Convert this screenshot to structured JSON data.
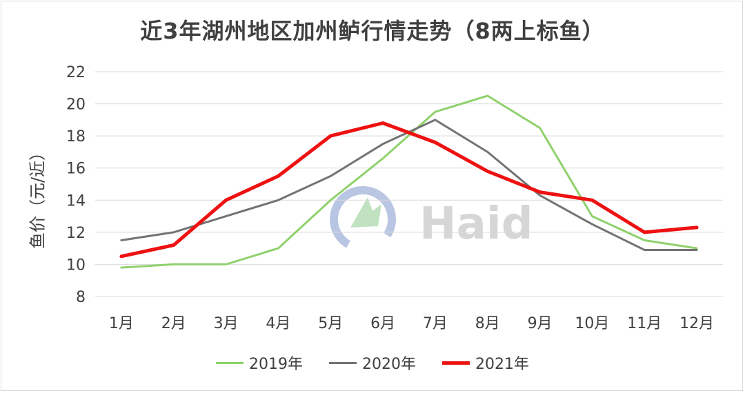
{
  "chart_data": {
    "type": "line",
    "title": "近3年湖州地区加州鲈行情走势（8两上标鱼）",
    "ylabel": "鱼价（元/近）",
    "xlabel": "",
    "categories": [
      "1月",
      "2月",
      "3月",
      "4月",
      "5月",
      "6月",
      "7月",
      "8月",
      "9月",
      "10月",
      "11月",
      "12月"
    ],
    "ylim": [
      8,
      22
    ],
    "yticks": [
      8,
      10,
      12,
      14,
      16,
      18,
      20,
      22
    ],
    "grid": true,
    "legend_position": "bottom",
    "series": [
      {
        "name": "2019年",
        "color": "#8fd16c",
        "values": [
          9.8,
          10.0,
          10.0,
          11.0,
          14.0,
          16.6,
          19.5,
          20.5,
          18.5,
          13.0,
          11.5,
          11.0
        ]
      },
      {
        "name": "2020年",
        "color": "#737373",
        "values": [
          11.5,
          12.0,
          13.0,
          14.0,
          15.5,
          17.5,
          19.0,
          17.0,
          14.3,
          12.5,
          10.9,
          10.9
        ]
      },
      {
        "name": "2021年",
        "color": "#ee1111",
        "values": [
          10.5,
          11.2,
          14.0,
          15.5,
          18.0,
          18.8,
          17.6,
          15.8,
          14.5,
          14.0,
          12.0,
          12.3
        ]
      }
    ]
  },
  "watermark": {
    "text": "Haid"
  }
}
